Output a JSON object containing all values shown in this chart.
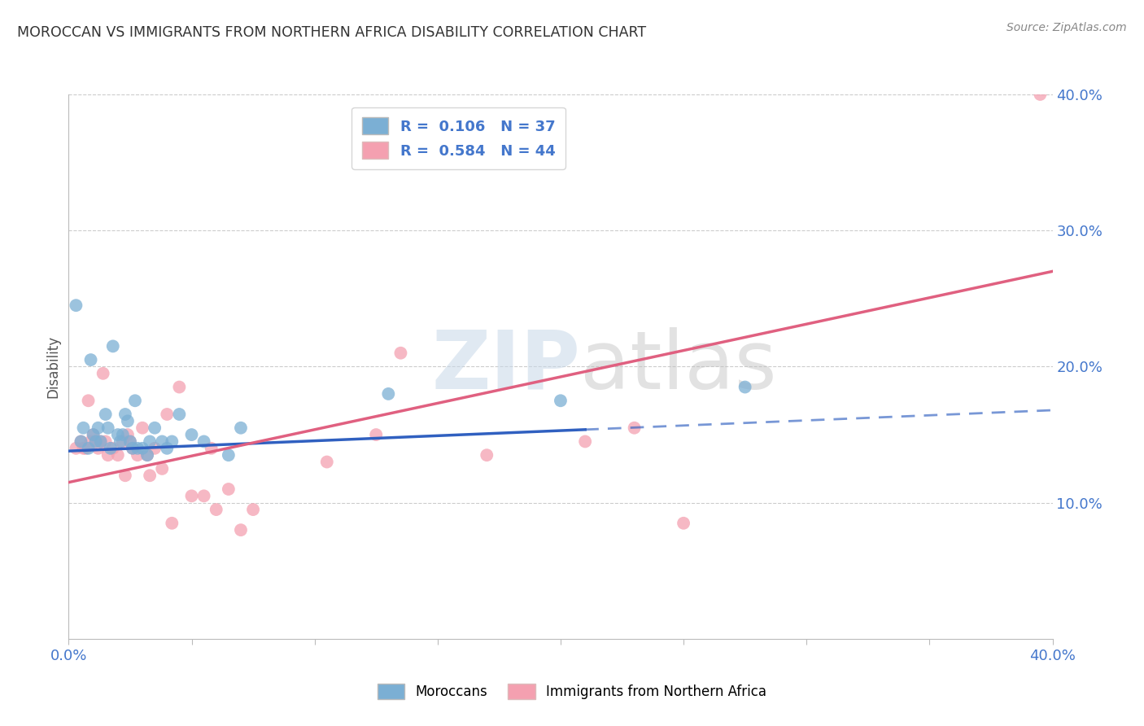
{
  "title": "MOROCCAN VS IMMIGRANTS FROM NORTHERN AFRICA DISABILITY CORRELATION CHART",
  "source": "Source: ZipAtlas.com",
  "ylabel": "Disability",
  "watermark": "ZIPatlas",
  "legend1_label": "Moroccans",
  "legend2_label": "Immigrants from Northern Africa",
  "r1": 0.106,
  "n1": 37,
  "r2": 0.584,
  "n2": 44,
  "color_blue": "#7BAFD4",
  "color_pink": "#F4A0B0",
  "line_blue": "#3060C0",
  "line_pink": "#E06080",
  "xlim": [
    0,
    40
  ],
  "ylim": [
    0,
    40
  ],
  "blue_points_x": [
    0.5,
    0.8,
    1.0,
    1.2,
    1.3,
    1.5,
    1.6,
    1.8,
    2.0,
    2.1,
    2.2,
    2.3,
    2.4,
    2.5,
    2.6,
    2.8,
    3.0,
    3.2,
    3.5,
    3.8,
    4.0,
    4.5,
    5.0,
    5.5,
    6.5,
    7.0,
    13.0,
    20.0,
    0.3,
    0.6,
    0.9,
    1.1,
    1.7,
    2.7,
    3.3,
    4.2,
    27.5
  ],
  "blue_points_y": [
    14.5,
    14.0,
    15.0,
    15.5,
    14.5,
    16.5,
    15.5,
    21.5,
    15.0,
    14.5,
    15.0,
    16.5,
    16.0,
    14.5,
    14.0,
    14.0,
    14.0,
    13.5,
    15.5,
    14.5,
    14.0,
    16.5,
    15.0,
    14.5,
    13.5,
    15.5,
    18.0,
    17.5,
    24.5,
    15.5,
    20.5,
    14.5,
    14.0,
    17.5,
    14.5,
    14.5,
    18.5
  ],
  "pink_points_x": [
    0.5,
    0.7,
    0.9,
    1.0,
    1.2,
    1.3,
    1.5,
    1.6,
    1.8,
    2.0,
    2.2,
    2.4,
    2.6,
    2.8,
    3.0,
    3.2,
    3.5,
    3.8,
    4.0,
    4.5,
    5.0,
    5.5,
    6.5,
    7.5,
    10.5,
    12.5,
    13.5,
    21.0,
    23.0,
    0.3,
    0.6,
    0.8,
    1.1,
    1.4,
    2.3,
    2.5,
    3.3,
    4.2,
    5.8,
    6.0,
    7.0,
    25.0,
    39.5,
    17.0
  ],
  "pink_points_y": [
    14.5,
    14.0,
    14.5,
    15.0,
    14.0,
    14.5,
    14.5,
    13.5,
    14.0,
    13.5,
    14.5,
    15.0,
    14.0,
    13.5,
    15.5,
    13.5,
    14.0,
    12.5,
    16.5,
    18.5,
    10.5,
    10.5,
    11.0,
    9.5,
    13.0,
    15.0,
    21.0,
    14.5,
    15.5,
    14.0,
    14.0,
    17.5,
    14.5,
    19.5,
    12.0,
    14.5,
    12.0,
    8.5,
    14.0,
    9.5,
    8.0,
    8.5,
    40.0,
    13.5
  ],
  "blue_trend_x0": 0,
  "blue_trend_y0": 13.8,
  "blue_trend_x1": 40,
  "blue_trend_y1": 16.8,
  "blue_solid_end_x": 21.0,
  "pink_trend_x0": 0,
  "pink_trend_y0": 11.5,
  "pink_trend_x1": 40,
  "pink_trend_y1": 27.0,
  "background_color": "#FFFFFF",
  "grid_color": "#CCCCCC",
  "title_color": "#333333",
  "tick_color": "#4477CC",
  "right_axis_color": "#4477CC",
  "xtick_positions": [
    0,
    5,
    10,
    15,
    20,
    25,
    30,
    35,
    40
  ],
  "ytick_positions": [
    0,
    10,
    20,
    30,
    40
  ]
}
